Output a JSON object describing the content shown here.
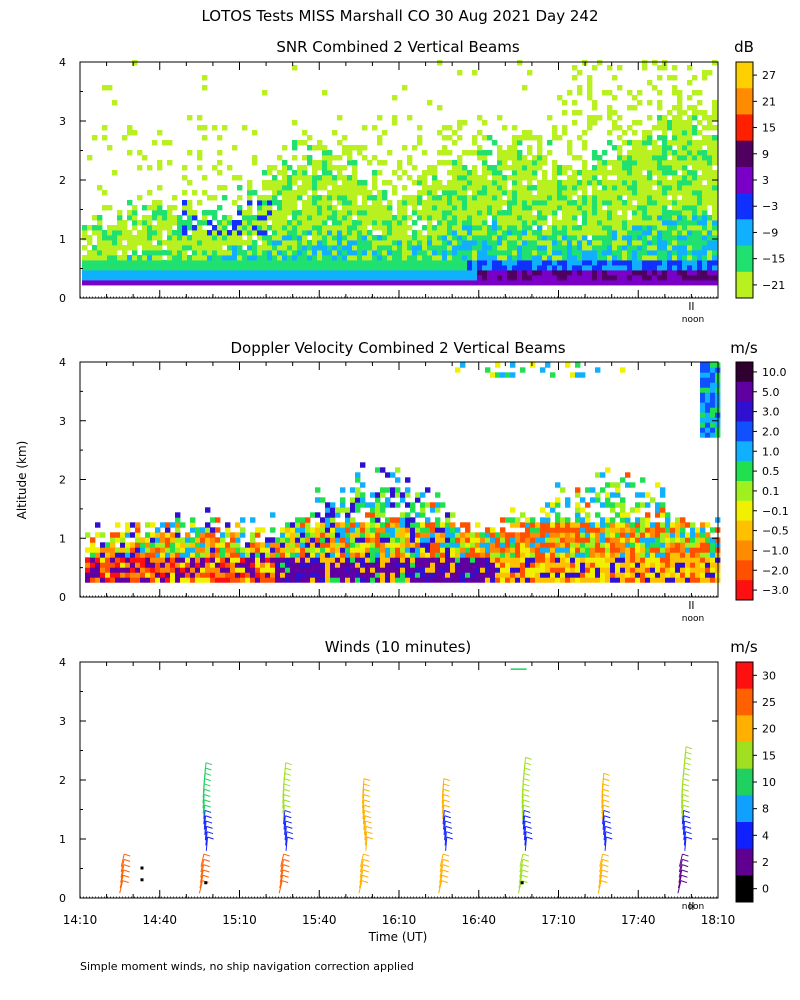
{
  "figure": {
    "title": "LOTOS Tests MISS Marshall CO  30 Aug 2021 Day 242",
    "ylabel": "Altitude (km)",
    "xlabel": "Time (UT)",
    "noon_label": "noon",
    "footnote": "Simple moment winds, no ship navigation correction applied"
  },
  "chart_data": [
    {
      "type": "heatmap",
      "title": "SNR Combined 2 Vertical Beams",
      "ylim": [
        0,
        4
      ],
      "y_ticks": [
        "0",
        "1",
        "2",
        "3",
        "4"
      ],
      "x_range_minutes": [
        0,
        240
      ],
      "colorbar": {
        "unit": "dB",
        "tick_labels": [
          "27",
          "21",
          "15",
          "9",
          "3",
          "−3",
          "−9",
          "−15",
          "−21"
        ],
        "colors": [
          "#ffd000",
          "#ff8c00",
          "#ff2000",
          "#500060",
          "#7a00c8",
          "#1030ff",
          "#10b0ff",
          "#20e070",
          "#b8f020"
        ]
      }
    },
    {
      "type": "heatmap",
      "title": "Doppler Velocity Combined 2 Vertical Beams",
      "ylim": [
        0,
        4
      ],
      "y_ticks": [
        "0",
        "1",
        "2",
        "3",
        "4"
      ],
      "x_range_minutes": [
        0,
        240
      ],
      "colorbar": {
        "unit": "m/s",
        "tick_labels": [
          "10.0",
          "5.0",
          "3.0",
          "2.0",
          "1.0",
          "0.5",
          "0.1",
          "−0.1",
          "−0.5",
          "−1.0",
          "−2.0",
          "−3.0"
        ],
        "colors": [
          "#300030",
          "#6000a0",
          "#3010d0",
          "#1050ff",
          "#10b0ff",
          "#20e050",
          "#a0f020",
          "#f0f000",
          "#ffc000",
          "#ff8c00",
          "#ff5000",
          "#ff1010"
        ]
      }
    },
    {
      "type": "scatter",
      "title": "Winds (10 minutes)",
      "ylim": [
        0,
        4
      ],
      "y_ticks": [
        "0",
        "1",
        "2",
        "3",
        "4"
      ],
      "x_ticks": [
        "14:10",
        "14:40",
        "15:10",
        "15:40",
        "16:10",
        "16:40",
        "17:10",
        "17:40",
        "18:10"
      ],
      "x_range_minutes": [
        0,
        240
      ],
      "colorbar": {
        "unit": "m/s",
        "tick_labels": [
          "30",
          "25",
          "20",
          "15",
          "10",
          "8",
          "4",
          "2",
          "0"
        ],
        "colors": [
          "#ff1010",
          "#ff6000",
          "#ffb000",
          "#a0e020",
          "#20d060",
          "#10a0ff",
          "#1020ff",
          "#600090",
          "#000000"
        ]
      },
      "profile_times_minutes": [
        14,
        44,
        74,
        104,
        134,
        164,
        194,
        224
      ]
    }
  ]
}
